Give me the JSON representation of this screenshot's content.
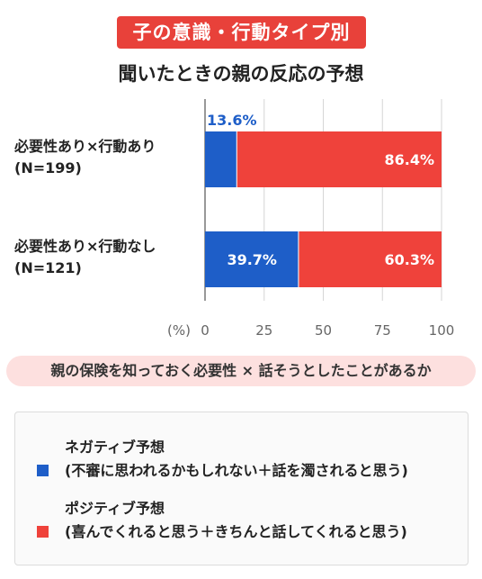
{
  "header": {
    "badge": "子の意識・行動タイプ別",
    "title": "聞いたときの親の反応の予想"
  },
  "colors": {
    "badge": "#e8413a",
    "negative": "#1e5ec8",
    "positive": "#ef423b",
    "pill_bg": "#fde0df"
  },
  "chart_data": {
    "type": "bar",
    "orientation": "horizontal",
    "stacked": true,
    "title": "聞いたときの親の反応の予想",
    "categories": [
      [
        "必要性あり×行動あり",
        "(N=199)"
      ],
      [
        "必要性あり×行動なし",
        "(N=121)"
      ]
    ],
    "series": [
      {
        "name": "ネガティブ予想",
        "values": [
          13.6,
          39.7
        ],
        "labels": [
          "13.6%",
          "39.7%"
        ]
      },
      {
        "name": "ポジティブ予想",
        "values": [
          86.4,
          60.3
        ],
        "labels": [
          "86.4%",
          "60.3%"
        ]
      }
    ],
    "xunit": "(%)",
    "xlim": [
      0,
      100
    ],
    "xticks": [
      "0",
      "25",
      "50",
      "75",
      "100"
    ],
    "grid": true
  },
  "footer": {
    "note": "親の保険を知っておく必要性 × 話そうとしたことがあるか"
  },
  "legend": [
    {
      "line1": "ネガティブ予想",
      "line2": "(不審に思われるかもしれない＋話を濁されると思う)"
    },
    {
      "line1": "ポジティブ予想",
      "line2": "(喜んでくれると思う＋きちんと話してくれると思う)"
    }
  ]
}
